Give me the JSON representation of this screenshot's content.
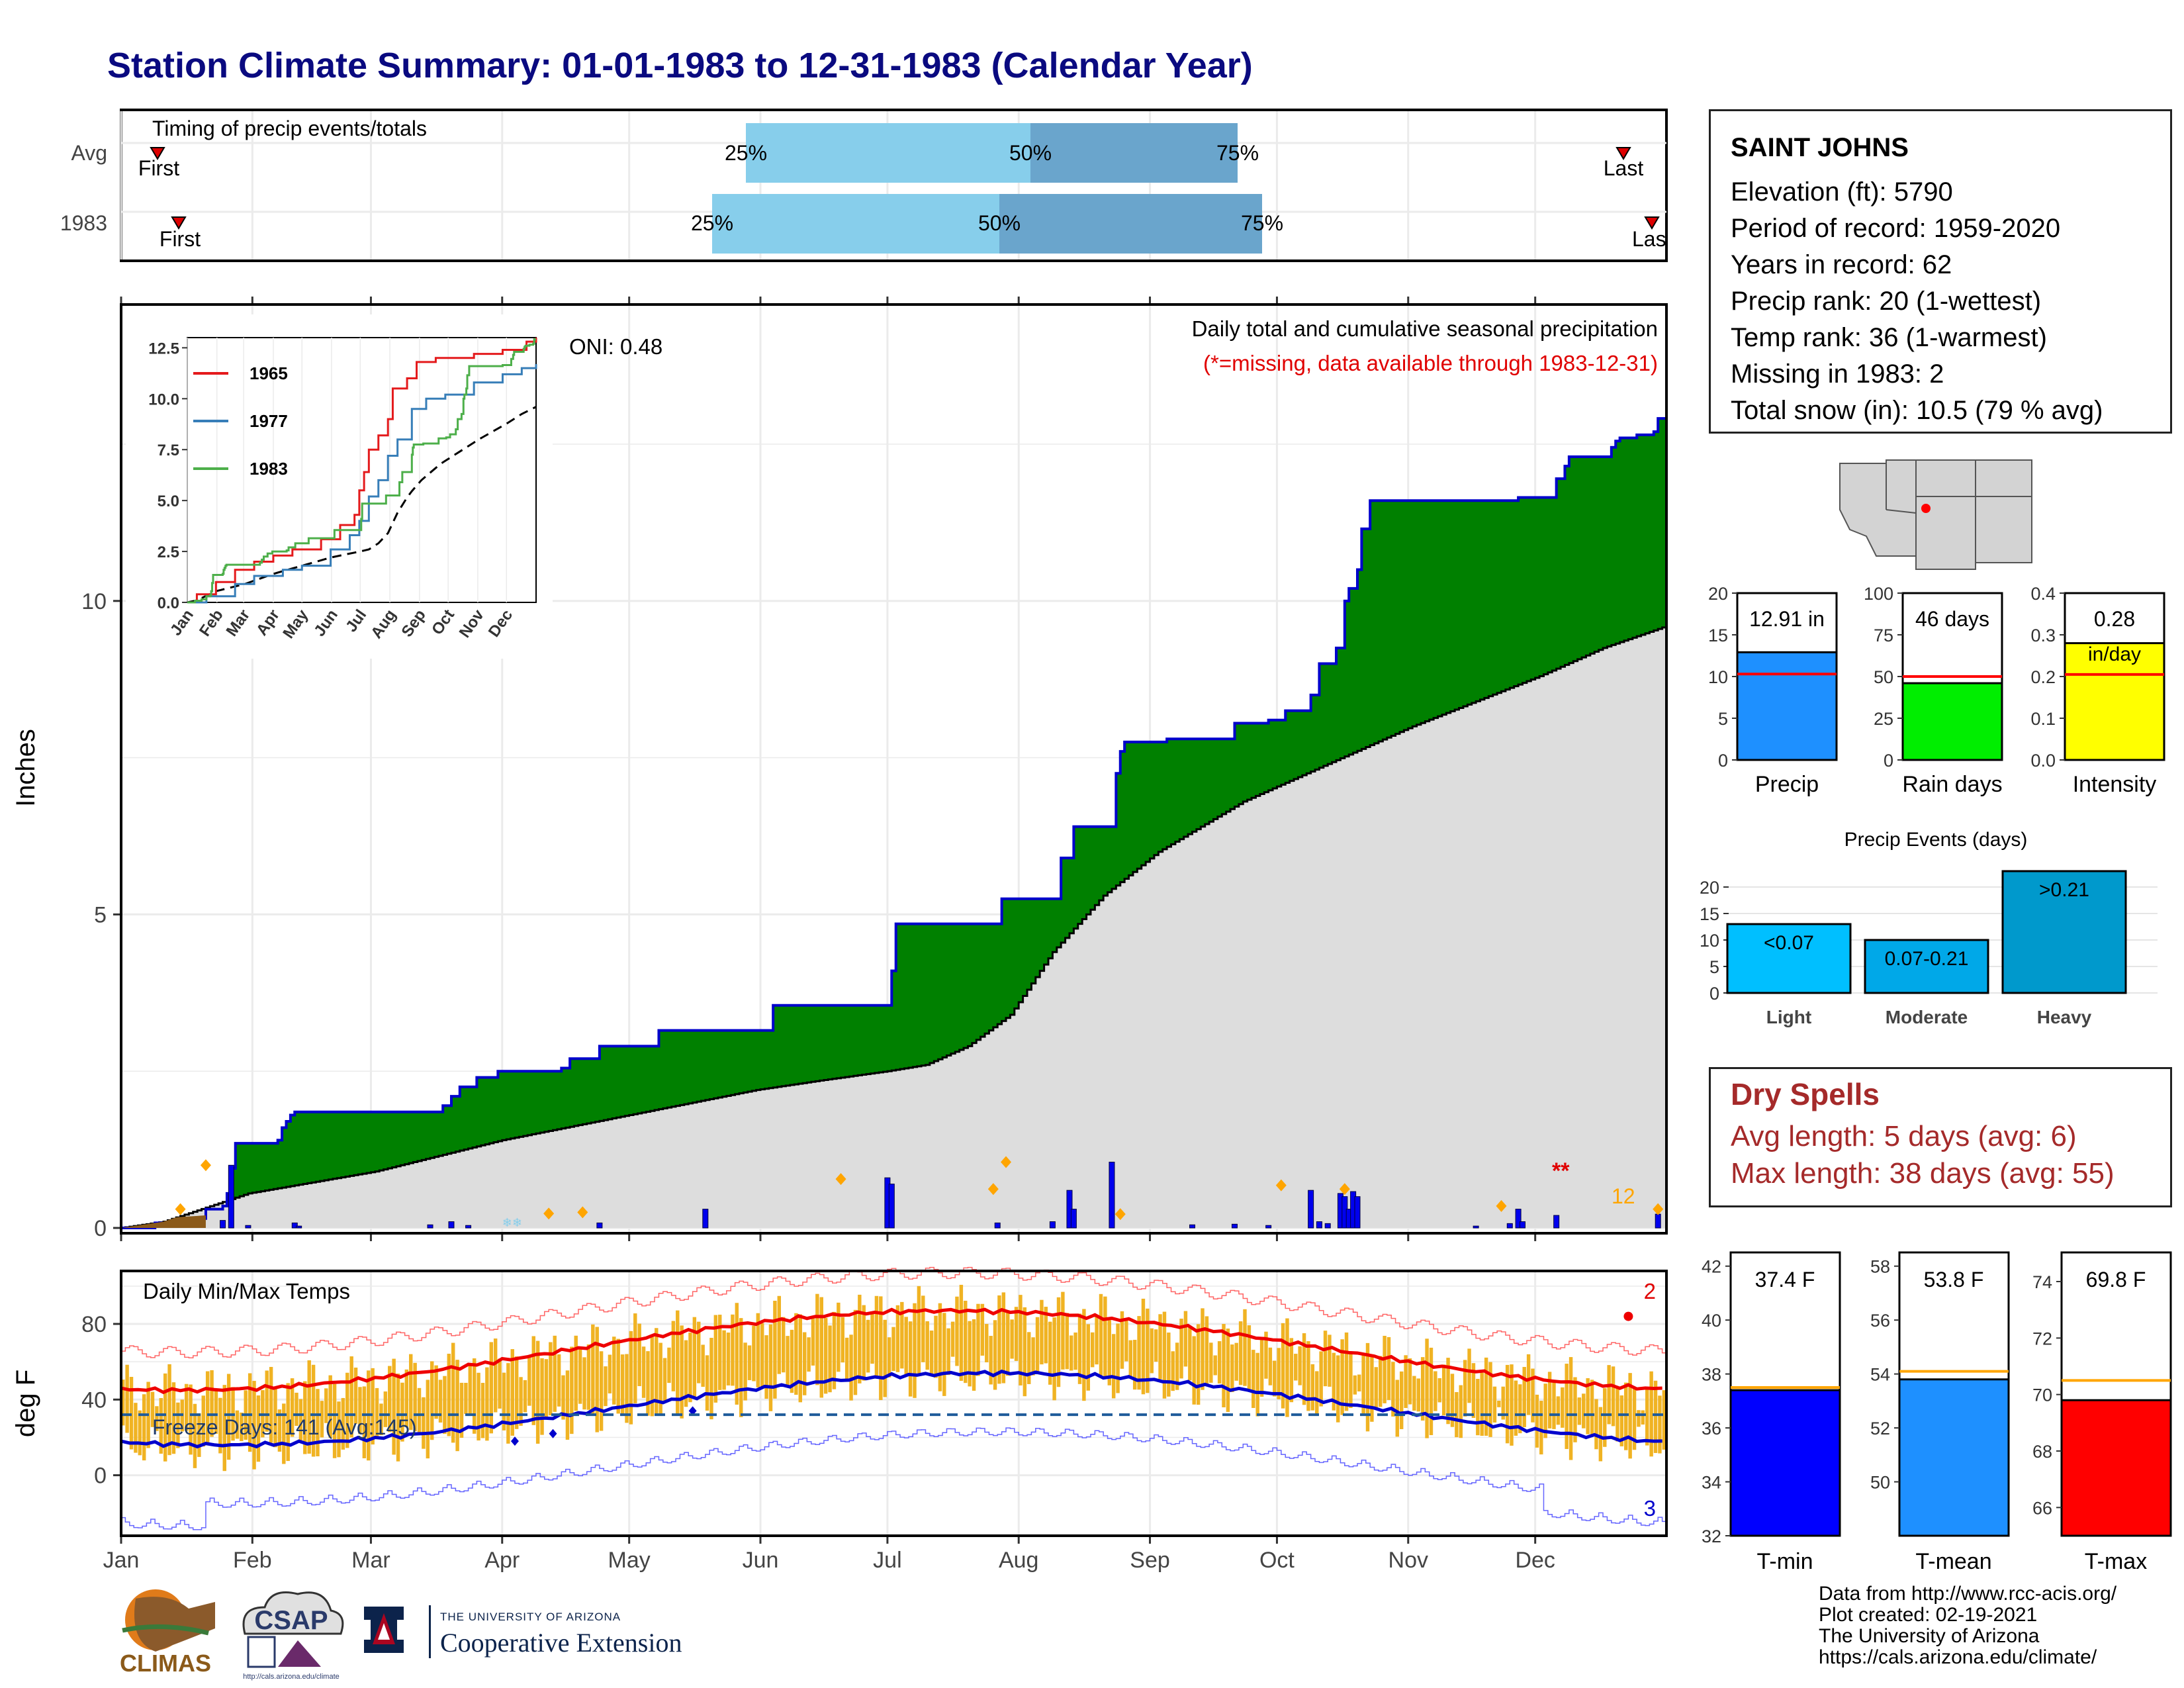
{
  "title": "Station Climate Summary: 01-01-1983 to 12-31-1983 (Calendar Year)",
  "timing_panel": {
    "title": "Timing of precip events/totals",
    "rows": [
      {
        "label": "Avg",
        "first": "First",
        "last": "Last",
        "q25": "25%",
        "q50": "50%",
        "q75": "75%"
      },
      {
        "label": "1983",
        "first": "First",
        "last": "Last",
        "q25": "25%",
        "q50": "50%",
        "q75": "75%"
      }
    ]
  },
  "main_panel": {
    "ylabel": "Inches",
    "oni": "ONI: 0.48",
    "subtitle": "Daily total and cumulative seasonal precipitation",
    "missing_note": "(*=missing, data available through 1983-12-31)",
    "missing_marker": "**",
    "snow_count": "12",
    "y_ticks": [
      "0",
      "5",
      "10"
    ],
    "colors": {
      "cumulative_fill": "#008000",
      "cumulative_line": "#0000cc",
      "avg_fill": "#dddddd",
      "daily_bars": "#0000ee",
      "heavy_marker": "#ffa500"
    }
  },
  "inset": {
    "series": [
      "1965",
      "1977",
      "1983"
    ],
    "colors": [
      "#e41a1c",
      "#377eb8",
      "#4daf4a"
    ],
    "y_ticks": [
      "0.0",
      "2.5",
      "5.0",
      "7.5",
      "10.0",
      "12.5"
    ],
    "x_ticks": [
      "Jan",
      "Feb",
      "Mar",
      "Apr",
      "May",
      "Jun",
      "Jul",
      "Aug",
      "Sep",
      "Oct",
      "Nov",
      "Dec"
    ]
  },
  "temp_panel": {
    "ylabel": "deg F",
    "title": "Daily Min/Max Temps",
    "freeze_days": "Freeze Days: 141 (Avg:145)",
    "record_high_count": "2",
    "record_low_count": "3",
    "y_ticks": [
      "0",
      "40",
      "80"
    ]
  },
  "months": [
    "Jan",
    "Feb",
    "Mar",
    "Apr",
    "May",
    "Jun",
    "Jul",
    "Aug",
    "Sep",
    "Oct",
    "Nov",
    "Dec"
  ],
  "station": {
    "name": "SAINT JOHNS",
    "lines": [
      "Elevation (ft): 5790",
      "Period of record: 1959-2020",
      "Years in record: 62",
      "Precip rank: 20 (1-wettest)",
      "Temp rank: 36 (1-warmest)",
      "Missing in 1983: 2",
      "Total snow (in): 10.5 (79 % avg)"
    ]
  },
  "summary_bars": [
    {
      "label": "Precip",
      "value_text": "12.91 in",
      "ticks": [
        "0",
        "5",
        "10",
        "15",
        "20"
      ],
      "color": "#1e90ff"
    },
    {
      "label": "Rain days",
      "value_text": "46 days",
      "ticks": [
        "0",
        "25",
        "50",
        "75",
        "100"
      ],
      "color": "#00ee00"
    },
    {
      "label": "Intensity",
      "value_text": "0.28",
      "value_unit": "in/day",
      "ticks": [
        "0.0",
        "0.1",
        "0.2",
        "0.3",
        "0.4"
      ],
      "color": "#ffff00"
    }
  ],
  "events": {
    "title": "Precip Events (days)",
    "ticks": [
      "0",
      "5",
      "10",
      "15",
      "20"
    ],
    "bars": [
      {
        "label": "Light",
        "value_text": "<0.07",
        "color": "#00bfff"
      },
      {
        "label": "Moderate",
        "value_text": "0.07-0.21",
        "color": "#00a8e8"
      },
      {
        "label": "Heavy",
        "value_text": ">0.21",
        "color": "#0099cc"
      }
    ]
  },
  "dry_spells": {
    "title": "Dry Spells",
    "avg": "Avg length: 5 days (avg: 6)",
    "max": "Max length: 38 days (avg: 55)"
  },
  "temp_bars": [
    {
      "label": "T-min",
      "value_text": "37.4 F",
      "ticks": [
        "32",
        "34",
        "36",
        "38",
        "40",
        "42"
      ],
      "color": "#0000ff"
    },
    {
      "label": "T-mean",
      "value_text": "53.8 F",
      "ticks": [
        "50",
        "52",
        "54",
        "56",
        "58"
      ],
      "color": "#1e90ff"
    },
    {
      "label": "T-max",
      "value_text": "69.8 F",
      "ticks": [
        "66",
        "68",
        "70",
        "72",
        "74"
      ],
      "color": "#ff0000"
    }
  ],
  "credits": [
    "Data from http://www.rcc-acis.org/",
    "Plot created: 02-19-2021",
    "The University of Arizona",
    "https://cals.arizona.edu/climate/"
  ],
  "logos": {
    "climas": "CLIMAS",
    "csap": "CSAP",
    "csap_url": "http://cals.arizona.edu/climate",
    "ua_small": "THE UNIVERSITY OF ARIZONA",
    "ua_big": "Cooperative Extension"
  },
  "chart_data": [
    {
      "type": "line",
      "title": "Daily total and cumulative seasonal precipitation",
      "ylabel": "Inches",
      "ylim": [
        0,
        14.2
      ],
      "x": [
        "01-01",
        "01-15",
        "02-01",
        "03-01",
        "04-01",
        "05-01",
        "06-01",
        "07-01",
        "07-15",
        "08-01",
        "09-01",
        "09-20",
        "10-01",
        "11-01",
        "12-01",
        "12-31"
      ],
      "series": [
        {
          "name": "1983",
          "values": [
            0.0,
            0.3,
            1.85,
            1.9,
            2.55,
            3.15,
            3.55,
            4.85,
            5.8,
            7.75,
            8.05,
            9.2,
            11.6,
            11.65,
            12.7,
            12.91
          ]
        },
        {
          "name": "Avg",
          "values": [
            0.0,
            0.25,
            0.6,
            1.0,
            1.55,
            2.0,
            2.4,
            2.7,
            3.4,
            5.0,
            6.2,
            7.2,
            7.9,
            8.6,
            9.1,
            9.6
          ]
        }
      ]
    },
    {
      "type": "line",
      "title": "Daily Min/Max Temps",
      "ylabel": "deg F",
      "ylim": [
        -30,
        105
      ],
      "x": [
        "Jan",
        "Feb",
        "Mar",
        "Apr",
        "May",
        "Jun",
        "Jul",
        "Aug",
        "Sep",
        "Oct",
        "Nov",
        "Dec"
      ],
      "series": [
        {
          "name": "Avg max",
          "values": [
            45,
            50,
            54,
            61,
            70,
            80,
            86,
            84,
            79,
            69,
            57,
            47
          ]
        },
        {
          "name": "Avg min",
          "values": [
            17,
            20,
            24,
            29,
            36,
            45,
            53,
            52,
            45,
            34,
            24,
            18
          ]
        }
      ]
    },
    {
      "type": "bar",
      "categories": [
        "Precip"
      ],
      "values": [
        12.91
      ],
      "reference": [
        10.3
      ],
      "ylim": [
        0,
        20
      ]
    },
    {
      "type": "bar",
      "categories": [
        "Rain days"
      ],
      "values": [
        46
      ],
      "reference": [
        50
      ],
      "ylim": [
        0,
        100
      ]
    },
    {
      "type": "bar",
      "categories": [
        "Intensity"
      ],
      "values": [
        0.28
      ],
      "reference": [
        0.2
      ],
      "ylim": [
        0,
        0.4
      ]
    },
    {
      "type": "bar",
      "title": "Precip Events (days)",
      "categories": [
        "Light",
        "Moderate",
        "Heavy"
      ],
      "values": [
        13,
        10,
        23
      ],
      "ylim": [
        0,
        24
      ]
    },
    {
      "type": "bar",
      "categories": [
        "T-min"
      ],
      "values": [
        37.4
      ],
      "reference": [
        37.5
      ],
      "ylim": [
        32,
        42
      ]
    },
    {
      "type": "bar",
      "categories": [
        "T-mean"
      ],
      "values": [
        53.8
      ],
      "reference": [
        54.1
      ],
      "ylim": [
        48,
        58
      ]
    },
    {
      "type": "bar",
      "categories": [
        "T-max"
      ],
      "values": [
        69.8
      ],
      "reference": [
        70.5
      ],
      "ylim": [
        65,
        75
      ]
    }
  ]
}
